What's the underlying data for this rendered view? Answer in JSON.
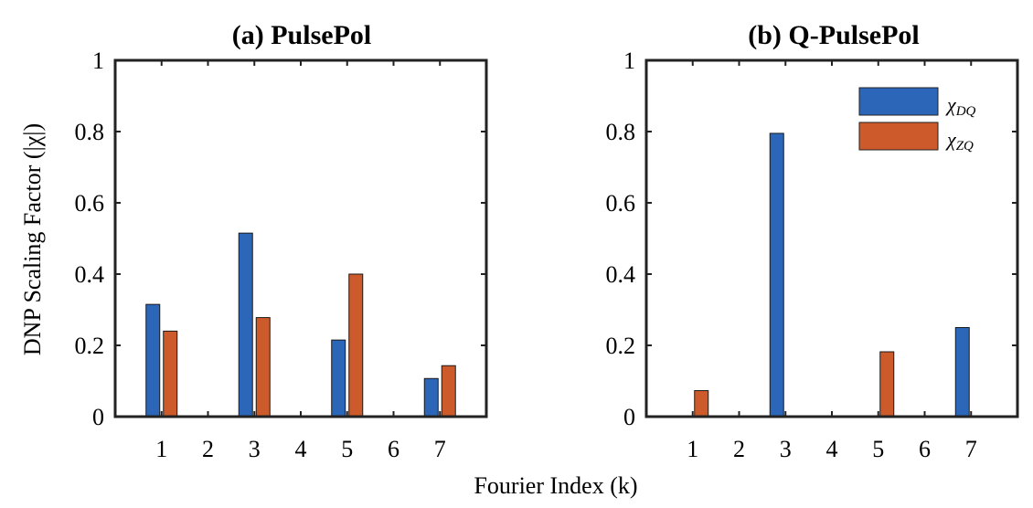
{
  "colors": {
    "dq": "#2b66b8",
    "zq": "#cc5a2a"
  },
  "ylabel": "DNP Scaling Factor (|χ|)",
  "xlabel": "Fourier Index (k)",
  "legend": {
    "dq_symbol": "χ",
    "dq_sub": "DQ",
    "zq_symbol": "χ",
    "zq_sub": "ZQ"
  },
  "chart_data": [
    {
      "type": "bar",
      "title": "(a) PulsePol",
      "categories": [
        "1",
        "2",
        "3",
        "4",
        "5",
        "6",
        "7"
      ],
      "ylim": [
        0,
        1
      ],
      "yticks": [
        "0",
        "0.2",
        "0.4",
        "0.6",
        "0.8",
        "1"
      ],
      "series": [
        {
          "name": "χDQ",
          "values": [
            0.315,
            0,
            0.515,
            0,
            0.215,
            0,
            0.107
          ]
        },
        {
          "name": "χZQ",
          "values": [
            0.24,
            0,
            0.278,
            0,
            0.4,
            0,
            0.143
          ]
        }
      ]
    },
    {
      "type": "bar",
      "title": "(b) Q-PulsePol",
      "categories": [
        "1",
        "2",
        "3",
        "4",
        "5",
        "6",
        "7"
      ],
      "ylim": [
        0,
        1
      ],
      "yticks": [
        "0",
        "0.2",
        "0.4",
        "0.6",
        "0.8",
        "1"
      ],
      "series": [
        {
          "name": "χDQ",
          "values": [
            0,
            0,
            0.795,
            0,
            0,
            0,
            0.25
          ]
        },
        {
          "name": "χZQ",
          "values": [
            0.073,
            0,
            0,
            0,
            0.182,
            0,
            0
          ]
        }
      ]
    }
  ]
}
